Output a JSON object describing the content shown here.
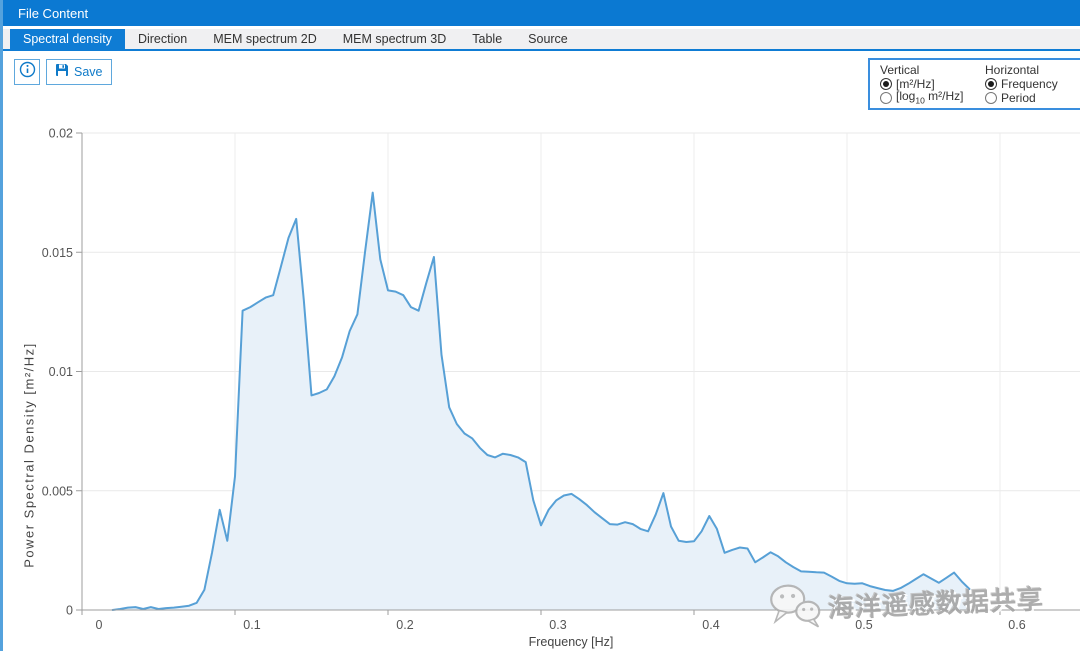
{
  "window": {
    "title": "File Content"
  },
  "tabs": [
    {
      "label": "Spectral density",
      "active": true
    },
    {
      "label": "Direction",
      "active": false
    },
    {
      "label": "MEM spectrum 2D",
      "active": false
    },
    {
      "label": "MEM spectrum 3D",
      "active": false
    },
    {
      "label": "Table",
      "active": false
    },
    {
      "label": "Source",
      "active": false
    }
  ],
  "toolbar": {
    "save_label": "Save"
  },
  "options_panel": {
    "vertical": {
      "title": "Vertical",
      "options": [
        {
          "label": "[m²/Hz]",
          "selected": true
        },
        {
          "label_prefix": "[log",
          "subscript": "10",
          "label_suffix": " m²/Hz]",
          "selected": false
        }
      ]
    },
    "horizontal": {
      "title": "Horizontal",
      "options": [
        {
          "label": "Frequency",
          "selected": true
        },
        {
          "label": "Period",
          "selected": false
        }
      ]
    }
  },
  "watermark": {
    "text": "海洋遥感数据共享",
    "icon": "wechat-icon"
  },
  "colors": {
    "accent_blue": "#0f7cd4",
    "titlebar_blue": "#0b79d2",
    "line_blue": "#57a0d6",
    "fill_blue": "#e8f1f9",
    "watermark_gray": "#a2a2a2"
  },
  "chart_data": {
    "type": "area",
    "title": "",
    "xlabel": "Frequency [Hz]",
    "ylabel": "Power Spectral Density [m²/Hz]",
    "xlim": [
      0,
      0.6523
    ],
    "ylim": [
      0,
      0.02
    ],
    "grid": true,
    "legend": "none",
    "x_ticks": [
      0,
      0.1,
      0.2,
      0.3,
      0.4,
      0.5,
      0.6
    ],
    "x_tick_labels": [
      "0",
      "0.1",
      "0.2",
      "0.3",
      "0.4",
      "0.5",
      "0.6"
    ],
    "y_ticks": [
      0,
      0.005,
      0.01,
      0.015,
      0.02
    ],
    "y_tick_labels": [
      "0",
      "0.005",
      "0.01",
      "0.015",
      "0.02"
    ],
    "line_color": "#57a0d6",
    "fill_color": "#e8f1f9",
    "series": [
      {
        "x": [
          0.02,
          0.025,
          0.03,
          0.035,
          0.04,
          0.045,
          0.05,
          0.055,
          0.06,
          0.065,
          0.07,
          0.075,
          0.08,
          0.085,
          0.09,
          0.095,
          0.1,
          0.105,
          0.11,
          0.115,
          0.12,
          0.125,
          0.13,
          0.135,
          0.14,
          0.145,
          0.15,
          0.155,
          0.16,
          0.165,
          0.17,
          0.175,
          0.18,
          0.185,
          0.19,
          0.195,
          0.2,
          0.205,
          0.21,
          0.215,
          0.22,
          0.225,
          0.23,
          0.235,
          0.24,
          0.245,
          0.25,
          0.255,
          0.26,
          0.265,
          0.27,
          0.275,
          0.28,
          0.285,
          0.29,
          0.295,
          0.3,
          0.305,
          0.31,
          0.315,
          0.32,
          0.325,
          0.33,
          0.335,
          0.34,
          0.345,
          0.35,
          0.355,
          0.36,
          0.365,
          0.37,
          0.375,
          0.38,
          0.385,
          0.39,
          0.395,
          0.4,
          0.405,
          0.41,
          0.415,
          0.42,
          0.425,
          0.43,
          0.435,
          0.44,
          0.445,
          0.45,
          0.455,
          0.46,
          0.465,
          0.47,
          0.475,
          0.48,
          0.485,
          0.49,
          0.495,
          0.5,
          0.505,
          0.51,
          0.515,
          0.52,
          0.525,
          0.53,
          0.535,
          0.54,
          0.545,
          0.55,
          0.555,
          0.56,
          0.565,
          0.57,
          0.575,
          0.58
        ],
        "y": [
          0.0,
          4e-05,
          0.0001,
          0.00012,
          4e-05,
          0.00012,
          4e-05,
          8e-05,
          0.0001,
          0.00014,
          0.00018,
          0.0003,
          0.00085,
          0.0024,
          0.0042,
          0.0029,
          0.0056,
          0.01255,
          0.0127,
          0.0129,
          0.0131,
          0.0132,
          0.0144,
          0.0156,
          0.0164,
          0.013,
          0.009,
          0.0091,
          0.00925,
          0.0098,
          0.0106,
          0.0117,
          0.0124,
          0.015,
          0.0175,
          0.0147,
          0.0134,
          0.01335,
          0.0132,
          0.0127,
          0.01255,
          0.0137,
          0.0148,
          0.0107,
          0.0085,
          0.0078,
          0.0074,
          0.0072,
          0.0068,
          0.0065,
          0.0064,
          0.00655,
          0.0065,
          0.0064,
          0.0062,
          0.0046,
          0.00355,
          0.0042,
          0.0046,
          0.0048,
          0.00487,
          0.00465,
          0.0044,
          0.0041,
          0.00385,
          0.0036,
          0.00358,
          0.00368,
          0.0036,
          0.0034,
          0.0033,
          0.004,
          0.0049,
          0.0035,
          0.0029,
          0.00285,
          0.00288,
          0.0033,
          0.00394,
          0.0034,
          0.0024,
          0.00252,
          0.00262,
          0.00258,
          0.002,
          0.0022,
          0.00242,
          0.00225,
          0.002,
          0.0018,
          0.00162,
          0.0016,
          0.00158,
          0.00157,
          0.0014,
          0.00122,
          0.00112,
          0.0011,
          0.00112,
          0.001,
          0.00092,
          0.00084,
          0.0008,
          0.00092,
          0.0011,
          0.0013,
          0.0015,
          0.00132,
          0.00114,
          0.00135,
          0.00157,
          0.0012,
          0.00088
        ]
      }
    ]
  }
}
